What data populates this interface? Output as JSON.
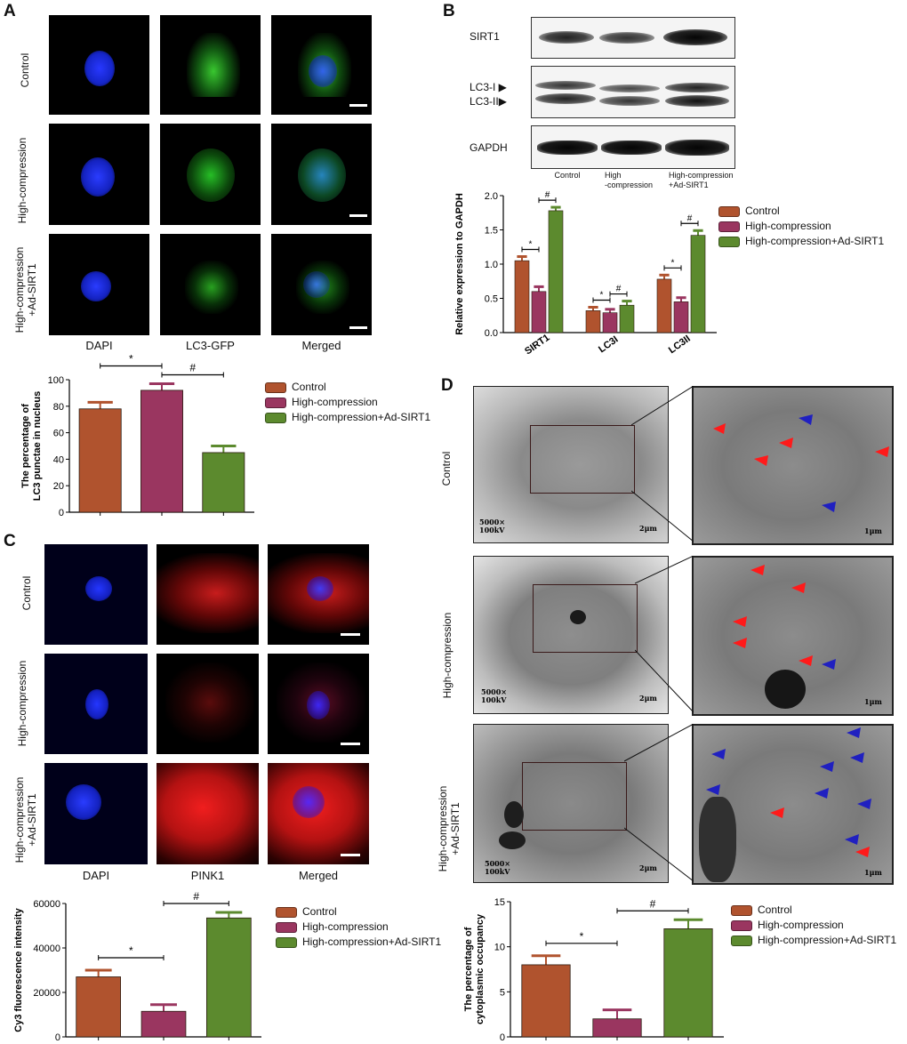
{
  "panels": {
    "a": "A",
    "b": "B",
    "c": "C",
    "d": "D"
  },
  "colors": {
    "control": "#b0532e",
    "high_compression": "#9a3660",
    "ad_sirt1": "#5c8a2e",
    "dapi": "#1e2fd8",
    "gfp": "#2ec02a",
    "cy3": "#d2221c",
    "arrow_red": "#ff1a1a",
    "arrow_blue": "#2020c0"
  },
  "panel_a": {
    "row_labels": [
      "Control",
      "High-compression",
      "High-compression\n+Ad-SIRT1"
    ],
    "col_labels": [
      "DAPI",
      "LC3-GFP",
      "Merged"
    ]
  },
  "panel_b": {
    "blot_labels": {
      "sirt1": "SIRT1",
      "lc3_i": "LC3-I",
      "lc3_ii": "LC3-II",
      "gapdh": "GAPDH"
    },
    "lane_labels": [
      "Control",
      "High\n-compression",
      "High-compression\n+Ad-SIRT1"
    ]
  },
  "panel_c": {
    "row_labels": [
      "Control",
      "High-compression",
      "High-compression\n+Ad-SIRT1"
    ],
    "col_labels": [
      "DAPI",
      "PINK1",
      "Merged"
    ]
  },
  "panel_d": {
    "row_labels": [
      "Control",
      "High-compression",
      "High-compression\n+Ad-SIRT1"
    ],
    "mag_text": "5000×",
    "kv_text": "100kV",
    "scale_overview": "2μm",
    "scale_zoom": "1μm"
  },
  "legend": {
    "items": [
      "Control",
      "High-compression",
      "High-compression+Ad-SIRT1"
    ]
  },
  "chart_data": [
    {
      "id": "A-bar",
      "type": "bar",
      "categories": [
        "Control",
        "High-compression",
        "High-compression+Ad-SIRT1"
      ],
      "values": [
        78,
        92,
        45
      ],
      "errors": [
        5,
        5,
        5
      ],
      "ylabel": "The percentage of\nLC3 punctae in nucleus",
      "ylim": [
        0,
        100
      ],
      "yticks": [
        0,
        20,
        40,
        60,
        80,
        100
      ],
      "significance": [
        {
          "from": 0,
          "to": 1,
          "label": "*"
        },
        {
          "from": 1,
          "to": 2,
          "label": "#"
        }
      ]
    },
    {
      "id": "B-bar",
      "type": "bar",
      "categories": [
        "SIRT1",
        "LC3I",
        "LC3II"
      ],
      "series": [
        {
          "name": "Control",
          "values": [
            1.05,
            0.32,
            0.78
          ],
          "errors": [
            0.06,
            0.05,
            0.06
          ]
        },
        {
          "name": "High-compression",
          "values": [
            0.6,
            0.29,
            0.45
          ],
          "errors": [
            0.07,
            0.05,
            0.06
          ]
        },
        {
          "name": "High-compression+Ad-SIRT1",
          "values": [
            1.78,
            0.4,
            1.42
          ],
          "errors": [
            0.05,
            0.06,
            0.07
          ]
        }
      ],
      "ylabel": "Relative expression to GAPDH",
      "ylim": [
        0,
        2.0
      ],
      "yticks": [
        "0.0",
        "0.5",
        "1.0",
        "1.5",
        "2.0"
      ],
      "significance": [
        {
          "cat": 0,
          "from": 0,
          "to": 1,
          "label": "*"
        },
        {
          "cat": 0,
          "from": 1,
          "to": 2,
          "label": "#"
        },
        {
          "cat": 1,
          "from": 0,
          "to": 1,
          "label": "*"
        },
        {
          "cat": 1,
          "from": 1,
          "to": 2,
          "label": "#"
        },
        {
          "cat": 2,
          "from": 0,
          "to": 1,
          "label": "*"
        },
        {
          "cat": 2,
          "from": 1,
          "to": 2,
          "label": "#"
        }
      ]
    },
    {
      "id": "C-bar",
      "type": "bar",
      "categories": [
        "Control",
        "High-compression",
        "High-compression+Ad-SIRT1"
      ],
      "values": [
        27000,
        11500,
        53500
      ],
      "errors": [
        3000,
        3000,
        2500
      ],
      "ylabel": "Cy3 fluorescence intensity",
      "ylim": [
        0,
        60000
      ],
      "yticks": [
        0,
        20000,
        40000,
        60000
      ],
      "significance": [
        {
          "from": 0,
          "to": 1,
          "label": "*"
        },
        {
          "from": 1,
          "to": 2,
          "label": "#"
        }
      ]
    },
    {
      "id": "D-bar",
      "type": "bar",
      "categories": [
        "Control",
        "High-compression",
        "High-compression+Ad-SIRT1"
      ],
      "values": [
        8.0,
        2.0,
        12.0
      ],
      "errors": [
        1.0,
        1.0,
        1.0
      ],
      "ylabel": "The percentage of\ncytoplasmic occupancy",
      "ylim": [
        0,
        15
      ],
      "yticks": [
        0,
        5,
        10,
        15
      ],
      "significance": [
        {
          "from": 0,
          "to": 1,
          "label": "*"
        },
        {
          "from": 1,
          "to": 2,
          "label": "#"
        }
      ]
    }
  ]
}
